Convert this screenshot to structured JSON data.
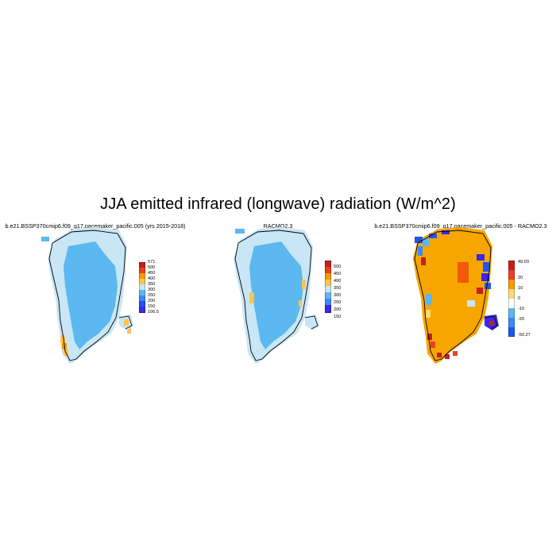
{
  "figure": {
    "title": "JJA emitted infrared (longwave) radiation (W/m^2)"
  },
  "panels": [
    {
      "title": "b.e21.BSSP370cmip6.f09_g17.pacemaker_pacific.005 (yrs 2015-2018)",
      "colorbar": {
        "labels": [
          "571",
          "500",
          "450",
          "400",
          "350",
          "300",
          "250",
          "200",
          "150",
          "106.5"
        ],
        "colors": [
          "#c81e1e",
          "#e8411a",
          "#f59b00",
          "#fec44f",
          "#c8e6f5",
          "#5bb8f0",
          "#3a8cf5",
          "#2155f0",
          "#3c28e6"
        ]
      }
    },
    {
      "title": "RACMO2.3",
      "colorbar": {
        "labels": [
          "500",
          "450",
          "400",
          "350",
          "300",
          "250",
          "200",
          "150"
        ],
        "colors": [
          "#c81e1e",
          "#e8411a",
          "#f59b00",
          "#fec44f",
          "#c8e6f5",
          "#5bb8f0",
          "#3a8cf5",
          "#2155f0",
          "#3c28e6"
        ]
      }
    },
    {
      "title": "b.e21.BSSP370cmip6.f09_g17.pacemaker_pacific.005 - RACMO2.3",
      "colorbar": {
        "labels": [
          "49.03",
          "20",
          "10",
          "0",
          "-10",
          "-20",
          "-50.27"
        ],
        "colors": [
          "#c81e1e",
          "#f03c28",
          "#f59b00",
          "#fed976",
          "#ffffff",
          "#5bb8f0",
          "#3a8cf5",
          "#2155f0"
        ]
      }
    }
  ],
  "colors": {
    "ice_sheet_field": "#5bb8f0",
    "coastal_band": "#c8e6f5",
    "warm_margin": "#fec44f",
    "diff_interior": "#f7a600"
  }
}
